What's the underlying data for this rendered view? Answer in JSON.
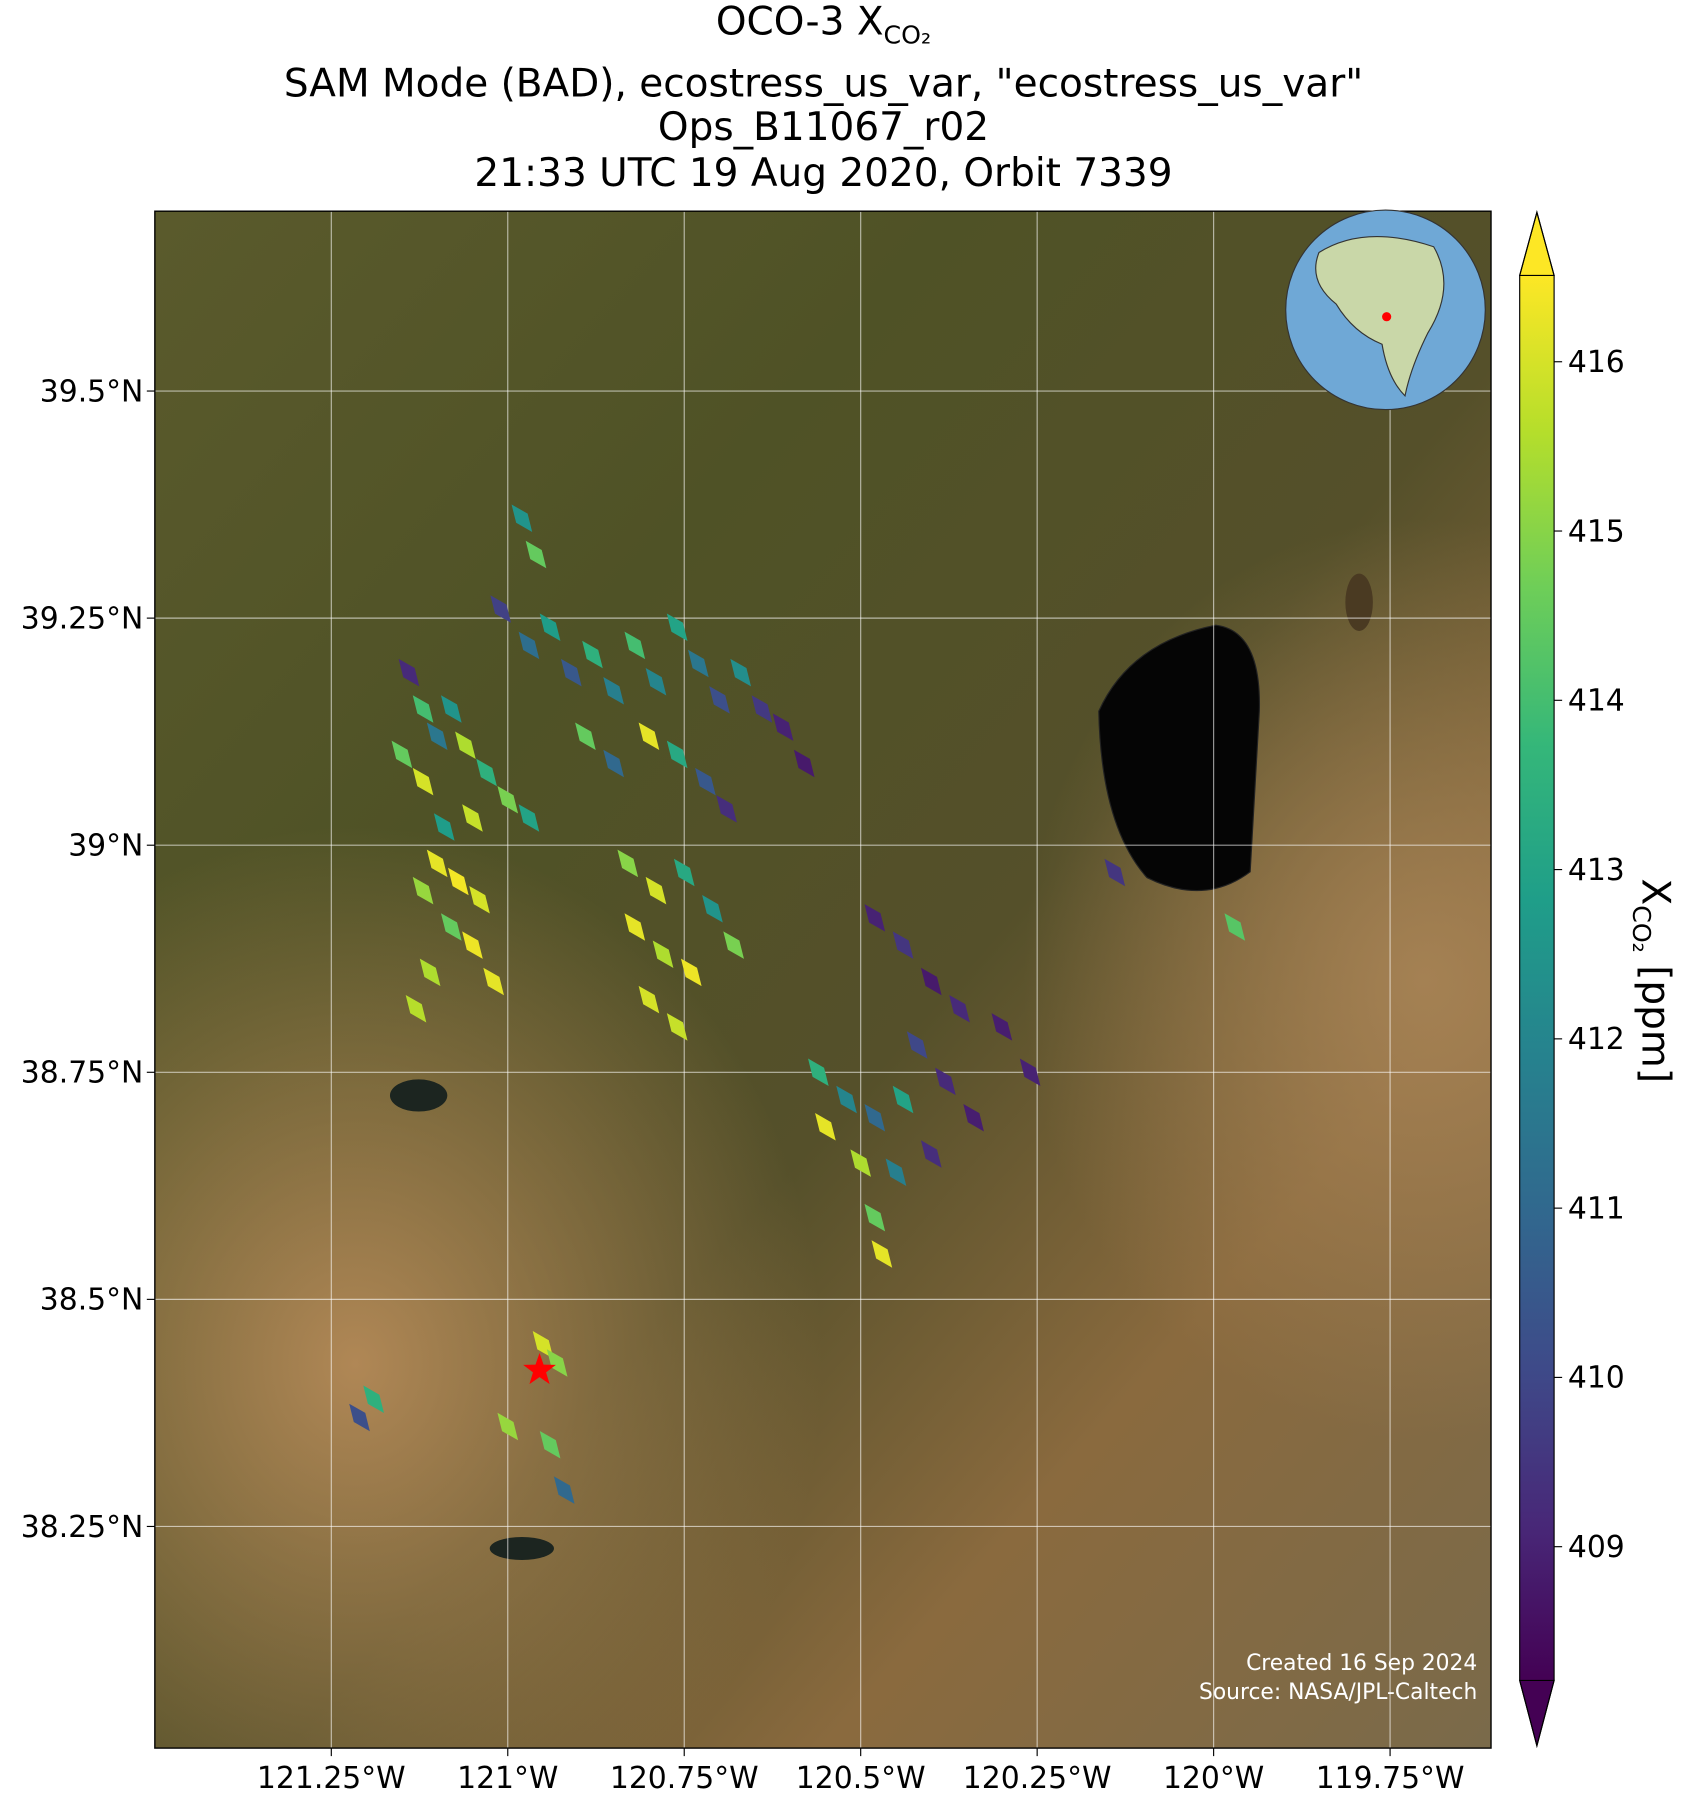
{
  "chart_data": {
    "type": "map",
    "title_lines": [
      "OCO-3 X",
      "SAM Mode (BAD), ecostress_us_var, \"ecostress_us_var\"",
      "Ops_B11067_r02",
      "21:33 UTC 19 Aug 2020, Orbit 7339"
    ],
    "title_sub": "CO₂",
    "xlim": [
      -121.5,
      -119.607
    ],
    "ylim": [
      38.006,
      39.698
    ],
    "xticks": [
      {
        "value": -121.25,
        "label": "121.25°W"
      },
      {
        "value": -121,
        "label": "121°W"
      },
      {
        "value": -120.75,
        "label": "120.75°W"
      },
      {
        "value": -120.5,
        "label": "120.5°W"
      },
      {
        "value": -120.25,
        "label": "120.25°W"
      },
      {
        "value": -120,
        "label": "120°W"
      },
      {
        "value": -119.75,
        "label": "119.75°W"
      }
    ],
    "yticks": [
      {
        "value": 38.25,
        "label": "38.25°N"
      },
      {
        "value": 38.5,
        "label": "38.5°N"
      },
      {
        "value": 38.75,
        "label": "38.75°N"
      },
      {
        "value": 39,
        "label": "39°N"
      },
      {
        "value": 39.25,
        "label": "39.25°N"
      },
      {
        "value": 39.5,
        "label": "39.5°N"
      }
    ],
    "grid": true,
    "colormap": "viridis",
    "clim": [
      408.21,
      416.51
    ],
    "cticks": [
      409,
      410,
      411,
      412,
      413,
      414,
      415,
      416
    ],
    "colorbar_label": "X",
    "colorbar_label_sub": "CO₂",
    "colorbar_label_unit": " [ppm]",
    "soundings": {
      "lon": [
        -121.14,
        -121.12,
        -121.1,
        -121.08,
        -121.06,
        -121.15,
        -121.12,
        -121.03,
        -121.0,
        -120.97,
        -121.05,
        -121.09,
        -121.1,
        -121.07,
        -121.12,
        -121.04,
        -121.08,
        -121.05,
        -121.11,
        -121.02,
        -121.13,
        -121.01,
        -120.97,
        -120.94,
        -120.91,
        -120.88,
        -120.85,
        -120.82,
        -120.79,
        -120.76,
        -120.73,
        -120.7,
        -120.67,
        -120.64,
        -120.8,
        -120.76,
        -120.72,
        -120.69,
        -120.85,
        -120.89,
        -120.61,
        -120.58,
        -120.98,
        -120.96,
        -120.83,
        -120.79,
        -120.75,
        -120.71,
        -120.82,
        -120.78,
        -120.74,
        -120.8,
        -120.76,
        -120.68,
        -120.48,
        -120.44,
        -120.4,
        -120.36,
        -120.3,
        -120.26,
        -120.42,
        -120.38,
        -120.34,
        -120.4,
        -120.56,
        -120.52,
        -120.48,
        -120.44,
        -120.55,
        -120.5,
        -120.45,
        -120.48,
        -120.47,
        -120.95,
        -120.93,
        -121.0,
        -120.94,
        -120.92,
        -121.19,
        -121.21,
        -120.14,
        -119.97
      ],
      "lat": [
        39.19,
        39.15,
        39.12,
        39.15,
        39.11,
        39.1,
        39.07,
        39.08,
        39.05,
        39.03,
        39.03,
        39.02,
        38.98,
        38.96,
        38.95,
        38.94,
        38.91,
        38.89,
        38.86,
        38.85,
        38.82,
        39.26,
        39.22,
        39.24,
        39.19,
        39.21,
        39.17,
        39.22,
        39.18,
        39.24,
        39.2,
        39.16,
        39.19,
        39.15,
        39.12,
        39.1,
        39.07,
        39.04,
        39.09,
        39.12,
        39.13,
        39.09,
        39.36,
        39.32,
        38.98,
        38.95,
        38.97,
        38.93,
        38.91,
        38.88,
        38.86,
        38.83,
        38.8,
        38.89,
        38.92,
        38.89,
        38.85,
        38.82,
        38.8,
        38.75,
        38.78,
        38.74,
        38.7,
        38.66,
        38.75,
        38.72,
        38.7,
        38.72,
        38.69,
        38.65,
        38.64,
        38.59,
        38.55,
        38.45,
        38.43,
        38.36,
        38.34,
        38.29,
        38.39,
        38.37,
        38.97,
        38.91
      ],
      "xco2": [
        409.2,
        414.0,
        411.5,
        412.5,
        415.5,
        414.5,
        416.0,
        413.5,
        414.8,
        413.0,
        415.8,
        412.8,
        416.2,
        416.4,
        415.2,
        416.0,
        414.5,
        416.3,
        415.5,
        416.2,
        415.6,
        409.8,
        411.2,
        412.8,
        410.5,
        413.5,
        411.8,
        414.0,
        412.0,
        413.0,
        411.5,
        410.2,
        412.3,
        409.6,
        416.2,
        413.2,
        410.5,
        409.3,
        411.0,
        414.5,
        409.0,
        408.8,
        412.5,
        414.5,
        415.0,
        416.0,
        413.2,
        412.5,
        416.2,
        415.5,
        416.3,
        416.0,
        415.8,
        414.8,
        409.0,
        409.5,
        408.8,
        409.2,
        408.9,
        409.0,
        410.0,
        409.2,
        408.9,
        409.3,
        413.5,
        412.0,
        411.0,
        413.0,
        416.2,
        415.5,
        411.8,
        414.5,
        416.2,
        416.0,
        415.0,
        415.2,
        414.5,
        411.0,
        413.5,
        410.2,
        409.5,
        414.3
      ]
    },
    "target": {
      "lon": -120.955,
      "lat": 38.422
    },
    "annotations": [
      "Created 16 Sep 2024",
      "Source: NASA/JPL-Caltech"
    ]
  }
}
